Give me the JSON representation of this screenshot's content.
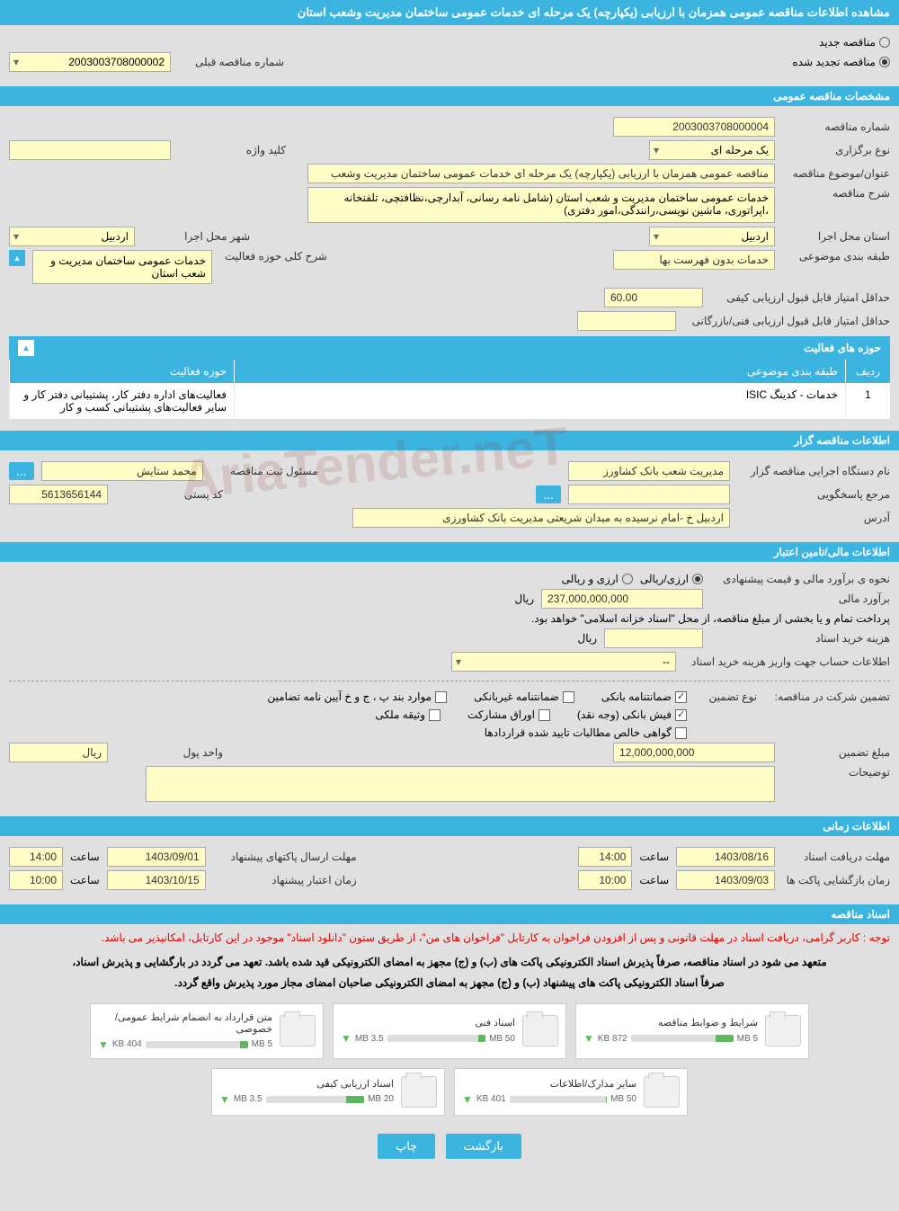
{
  "header": {
    "title": "مشاهده اطلاعات مناقصه عمومی همزمان با ارزیابی (یکپارچه) یک مرحله ای خدمات عمومی ساختمان مدیریت وشعب استان"
  },
  "top_radio": {
    "new_label": "مناقصه جدید",
    "renewed_label": "مناقصه تجدید شده",
    "prev_number_label": "شماره مناقصه قبلی",
    "prev_number_value": "2003003708000002"
  },
  "sections": {
    "general": "مشخصات مناقصه عمومی",
    "activities": "حوزه های فعالیت",
    "organizer": "اطلاعات مناقصه گزار",
    "financial": "اطلاعات مالی/تامین اعتبار",
    "timing": "اطلاعات زمانی",
    "documents": "اسناد مناقصه"
  },
  "general": {
    "tender_no_label": "شماره مناقصه",
    "tender_no": "2003003708000004",
    "type_label": "نوع برگزاری",
    "type_value": "یک مرحله ای",
    "keyword_label": "کلید واژه",
    "subject_label": "عنوان/موضوع مناقصه",
    "subject_value": "مناقصه عمومی همزمان با ارزیابی (یکپارچه) یک مرحله ای خدمات عمومی ساختمان مدیریت وشعب",
    "desc_label": "شرح مناقصه",
    "desc_value": "خدمات عمومی ساختمان مدیریت و شعب استان (شامل نامه رسانی، آبدارچی،نظافتچی، تلفنخانه ،اپراتوری، ماشین نویسی،رانندگی،امور دفتری)",
    "province_label": "استان محل اجرا",
    "province_value": "اردبیل",
    "city_label": "شهر محل اجرا",
    "city_value": "اردبیل",
    "category_label": "طبقه بندی موضوعی",
    "category_value": "خدمات بدون فهرست بها",
    "activity_desc_label": "شرح کلی حوزه فعالیت",
    "activity_desc_value": "خدمات عمومی ساختمان مدیریت و شعب استان",
    "min_quality_label": "حداقل امتیاز قابل قبول ارزیابی کیفی",
    "min_quality_value": "60.00",
    "min_tech_label": "حداقل امتیاز قابل قبول ارزیابی فنی/بازرگانی"
  },
  "activities_table": {
    "col_idx": "ردیف",
    "col_category": "طبقه بندی موضوعی",
    "col_activity": "حوزه فعالیت",
    "rows": [
      {
        "idx": "1",
        "category": "خدمات - کدینگ ISIC",
        "activity": "فعالیت‌های  اداره دفتر کار، پشتیبانی دفتر کار و سایر فعالیت‌های پشتیبانی کسب و کار"
      }
    ]
  },
  "organizer": {
    "agency_label": "نام دستگاه اجرایی مناقصه گزار",
    "agency_value": "مدیریت شعب بانک کشاورز",
    "registrar_label": "مسئول ثبت مناقصه",
    "registrar_value": "محمد ستایش",
    "response_label": "مرجع پاسخگویی",
    "postal_label": "کد پستی",
    "postal_value": "5613656144",
    "address_label": "آدرس",
    "address_value": "اردبیل خ -امام نرسیده به میدان شریعتی مدیریت بانک کشاورزی"
  },
  "financial": {
    "method_label": "نحوه ی برآورد مالی و قیمت پیشنهادی",
    "method_opt1": "ارزی/ریالی",
    "method_opt2": "ارزی و ریالی",
    "estimate_label": "برآورد مالی",
    "estimate_value": "237,000,000,000",
    "currency": "ریال",
    "treasury_note": "پرداخت تمام و یا بخشی از مبلغ مناقصه، از محل \"اسناد خزانه اسلامی\" خواهد بود.",
    "doc_cost_label": "هزینه خرید اسناد",
    "doc_cost_currency": "ریال",
    "account_label": "اطلاعات حساب جهت واریز هزینه خرید اسناد",
    "account_value": "--",
    "guarantee_header": "تضمین شرکت در مناقصه:",
    "guarantee_type_label": "نوع تضمین",
    "g1": "ضمانتنامه بانکی",
    "g2": "ضمانتنامه غیربانکی",
    "g3": "موارد بند پ ، ج و خ آیین نامه تضامین",
    "g4": "فیش بانکی (وجه نقد)",
    "g5": "اوراق مشارکت",
    "g6": "وثیقه ملکی",
    "g7": "گواهی خالص مطالبات تایید شده قراردادها",
    "guarantee_amount_label": "مبلغ تضمین",
    "guarantee_amount_value": "12,000,000,000",
    "unit_label": "واحد پول",
    "unit_value": "ریال",
    "notes_label": "توضیحات"
  },
  "timing": {
    "receive_deadline_label": "مهلت دریافت اسناد",
    "receive_date": "1403/08/16",
    "receive_time": "14:00",
    "time_label": "ساعت",
    "submit_deadline_label": "مهلت ارسال پاکتهای پیشنهاد",
    "submit_date": "1403/09/01",
    "submit_time": "14:00",
    "open_label": "زمان بازگشایی پاکت ها",
    "open_date": "1403/09/03",
    "open_time": "10:00",
    "validity_label": "زمان اعتبار پیشنهاد",
    "validity_date": "1403/10/15",
    "validity_time": "10:00"
  },
  "documents": {
    "note_red": "توجه : کاربر گرامی، دریافت اسناد در مهلت قانونی و پس از افزودن فراخوان به کارتابل \"فراخوان های من\"، از طریق ستون \"دانلود اسناد\" موجود در این کارتابل، امکانپذیر می باشد.",
    "note_black1": "متعهد می شود در اسناد مناقصه، صرفاً پذیرش اسناد الکترونیکی پاکت های (ب) و (ج) مجهز به امضای الکترونیکی قید شده باشد. تعهد می گردد در بارگشایی و پذیرش اسناد،",
    "note_black2": "صرفاً اسناد الکترونیکی پاکت های پیشنهاد (ب) و (ج) مجهز به امضای الکترونیکی صاحبان امضای مجاز مورد پذیرش واقع گردد.",
    "files": [
      {
        "name": "شرایط و ضوابط مناقصه",
        "used": "872 KB",
        "total": "5 MB",
        "pct": 17
      },
      {
        "name": "اسناد فنی",
        "used": "3.5 MB",
        "total": "50 MB",
        "pct": 7
      },
      {
        "name": "متن قرارداد به انضمام شرایط عمومی/خصوصی",
        "used": "404 KB",
        "total": "5 MB",
        "pct": 8
      },
      {
        "name": "سایر مدارک/اطلاعات",
        "used": "401 KB",
        "total": "50 MB",
        "pct": 1
      },
      {
        "name": "اسناد ارزیابی کیفی",
        "used": "3.5 MB",
        "total": "20 MB",
        "pct": 18
      }
    ]
  },
  "buttons": {
    "back": "بازگشت",
    "print": "چاپ"
  },
  "watermark": "AriaTender.neT",
  "colors": {
    "bar": "#3bb4e0",
    "field_bg": "#fdfdc5",
    "page_bg": "#e0e0e0"
  }
}
